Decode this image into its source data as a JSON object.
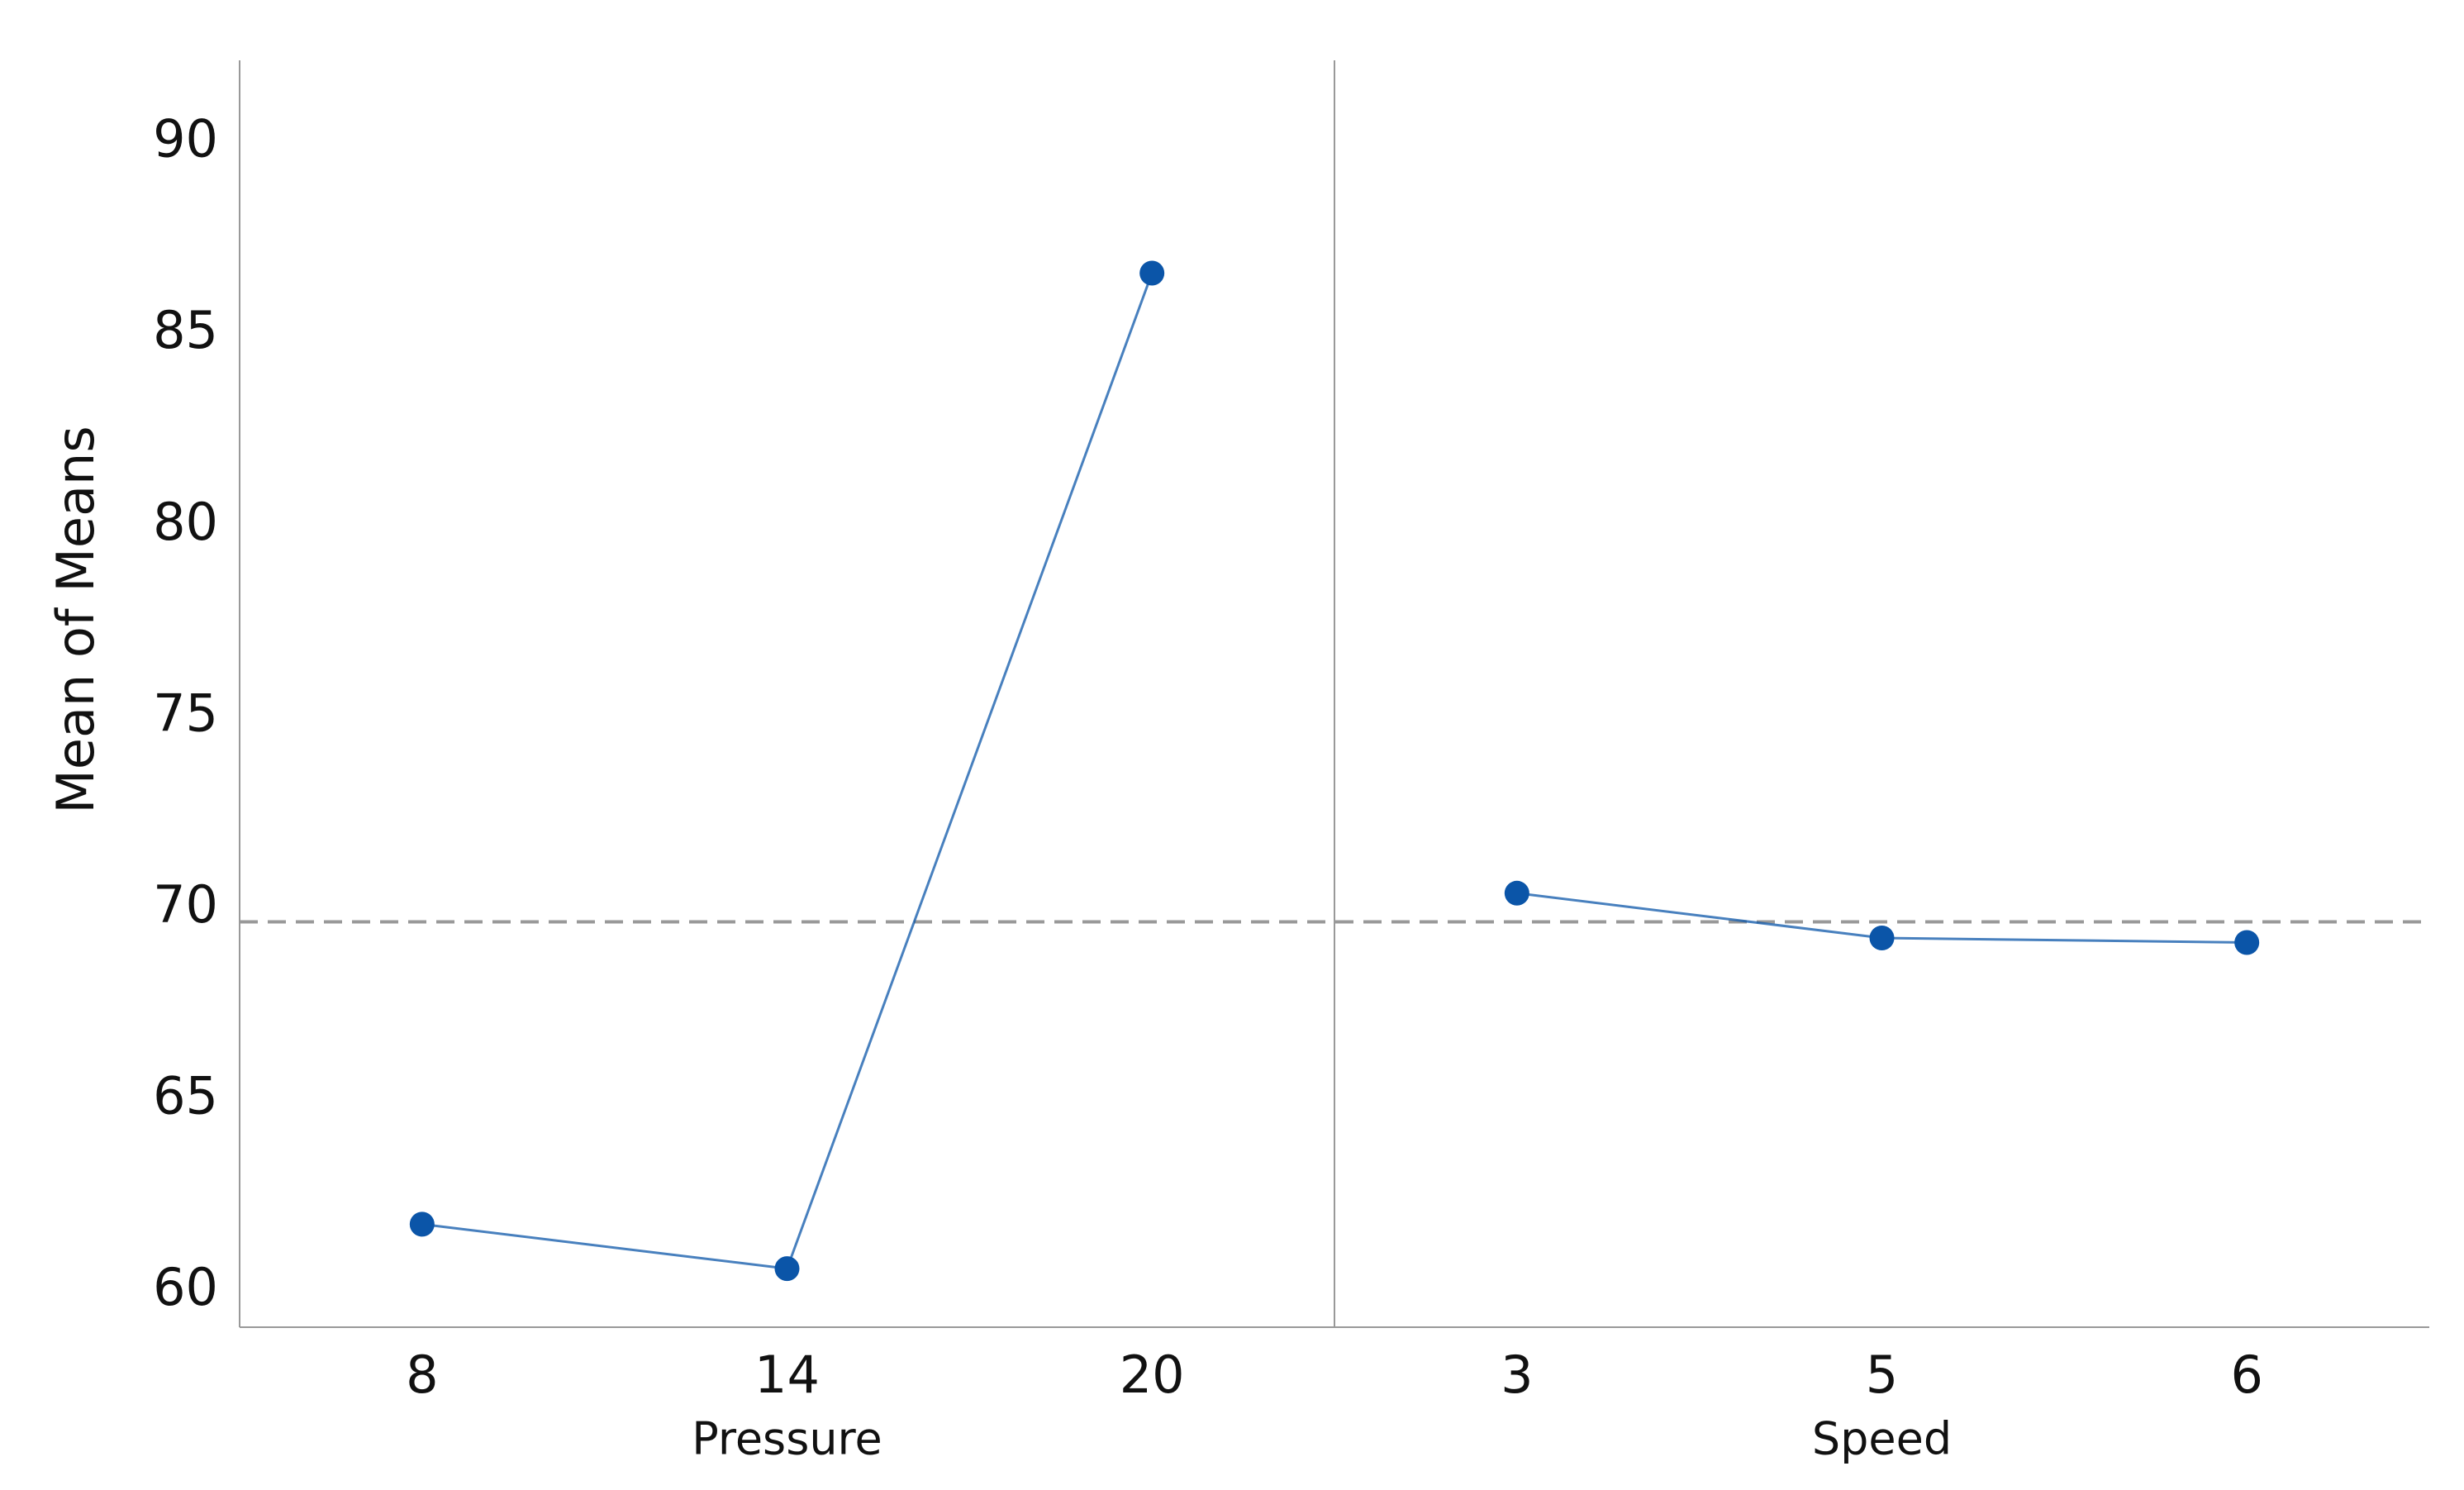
{
  "chart_data": {
    "type": "line",
    "ylabel": "Mean of Means",
    "ylim": [
      59.05,
      92.15
    ],
    "yticks": [
      60,
      65,
      70,
      75,
      80,
      85,
      90
    ],
    "color": "#0b55a8",
    "mean_line": 69.64,
    "panels": [
      {
        "xlabel": "Pressure",
        "categories": [
          "8",
          "14",
          "20"
        ],
        "values": [
          61.74,
          60.58,
          86.59
        ]
      },
      {
        "xlabel": "Speed",
        "categories": [
          "3",
          "5",
          "6"
        ],
        "values": [
          70.39,
          69.22,
          69.1
        ]
      }
    ]
  }
}
